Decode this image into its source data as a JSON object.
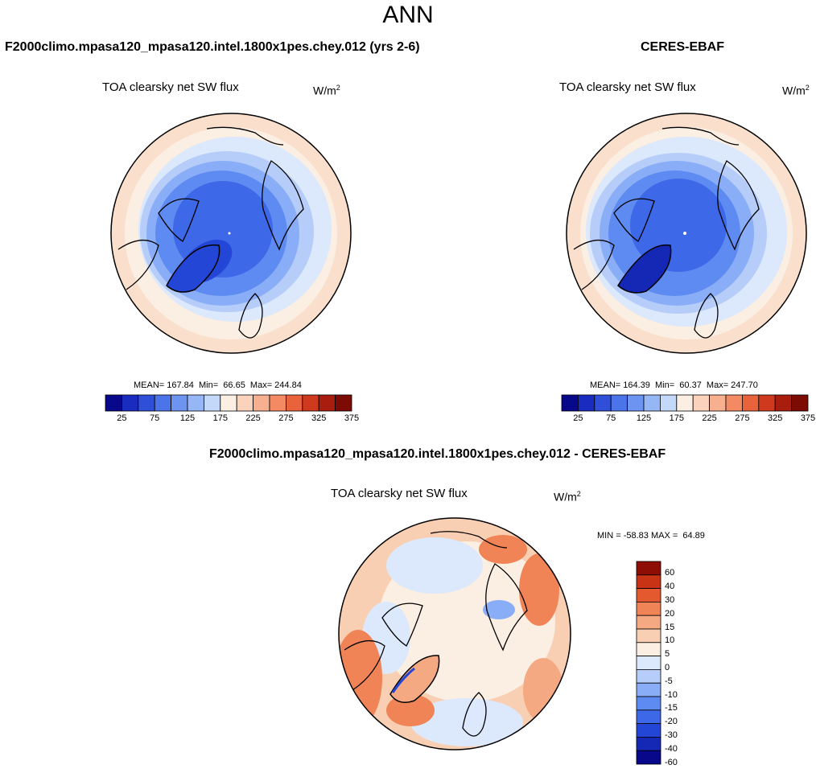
{
  "page": {
    "title": "ANN"
  },
  "panels": {
    "test": {
      "title": "F2000climo.mpasa120_mpasa120.intel.1800x1pes.chey.012 (yrs 2-6)",
      "variable": "TOA clearsky net SW flux",
      "units": "W/m",
      "units_exp": "2",
      "stats": "MEAN= 167.84  Min=  66.65  Max= 244.84"
    },
    "ref": {
      "title": "CERES-EBAF",
      "variable": "TOA clearsky net SW flux",
      "units": "W/m",
      "units_exp": "2",
      "stats": "MEAN= 164.39  Min=  60.37  Max= 247.70"
    },
    "diff": {
      "title": "F2000climo.mpasa120_mpasa120.intel.1800x1pes.chey.012 - CERES-EBAF",
      "variable": "TOA clearsky net SW flux",
      "units": "W/m",
      "units_exp": "2",
      "stats": "MIN = -58.83 MAX =  64.89"
    }
  },
  "colorbars": {
    "main": {
      "colors": [
        "#08088a",
        "#1a2bbf",
        "#2f4fd9",
        "#4a74e8",
        "#6d94f0",
        "#97b6f5",
        "#c4d9fa",
        "#fbeee2",
        "#fbd3bd",
        "#f7b08f",
        "#f38a63",
        "#e8623c",
        "#cf3a1f",
        "#a81d0e",
        "#7c0b04"
      ],
      "tick_labels": [
        "25",
        "75",
        "125",
        "175",
        "225",
        "275",
        "325",
        "375"
      ]
    },
    "diff": {
      "colors": [
        "#08088a",
        "#1528b5",
        "#2346d6",
        "#3d68e8",
        "#5e8bf1",
        "#89adf6",
        "#b6cdf9",
        "#dce8fb",
        "#fbeee2",
        "#f9cfb3",
        "#f5a982",
        "#f08456",
        "#e45a2e",
        "#c73314",
        "#8e0d04"
      ],
      "tick_labels": [
        "60",
        "40",
        "30",
        "20",
        "15",
        "10",
        "5",
        "0",
        "-5",
        "-10",
        "-15",
        "-20",
        "-30",
        "-40",
        "-60"
      ]
    }
  },
  "chart_data": [
    {
      "type": "heatmap",
      "projection": "north-polar-stereographic",
      "title": "F2000climo.mpasa120_mpasa120.intel.1800x1pes.chey.012 (yrs 2-6)",
      "variable": "TOA clearsky net SW flux",
      "units": "W/m^2",
      "mean": 167.84,
      "min": 66.65,
      "max": 244.84,
      "levels": [
        25,
        50,
        75,
        100,
        125,
        150,
        175,
        200,
        225,
        250,
        275,
        300,
        325,
        350,
        375
      ]
    },
    {
      "type": "heatmap",
      "projection": "north-polar-stereographic",
      "title": "CERES-EBAF",
      "variable": "TOA clearsky net SW flux",
      "units": "W/m^2",
      "mean": 164.39,
      "min": 60.37,
      "max": 247.7,
      "levels": [
        25,
        50,
        75,
        100,
        125,
        150,
        175,
        200,
        225,
        250,
        275,
        300,
        325,
        350,
        375
      ]
    },
    {
      "type": "heatmap",
      "projection": "north-polar-stereographic",
      "title": "F2000climo.mpasa120_mpasa120.intel.1800x1pes.chey.012 - CERES-EBAF",
      "variable": "TOA clearsky net SW flux",
      "units": "W/m^2",
      "min": -58.83,
      "max": 64.89,
      "levels": [
        -60,
        -40,
        -30,
        -20,
        -15,
        -10,
        -5,
        0,
        5,
        10,
        15,
        20,
        30,
        40,
        60
      ]
    }
  ]
}
